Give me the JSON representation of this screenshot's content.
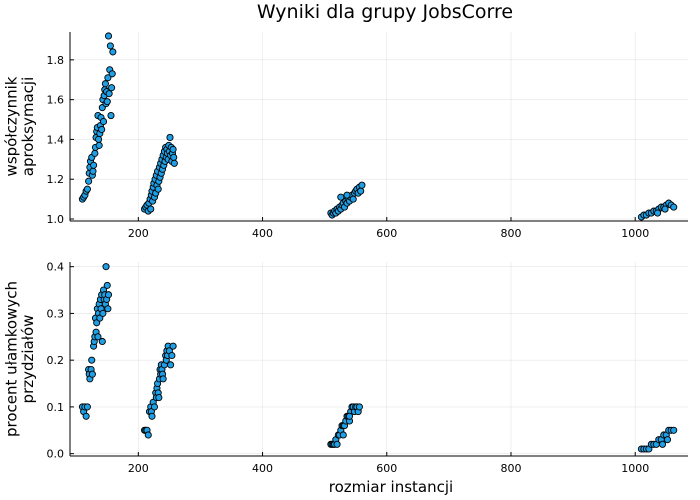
{
  "title": "Wyniki dla grupy JobsCorre",
  "colors": {
    "marker": "#1f9fe5",
    "marker_edge": "#000000"
  },
  "chart_data": [
    {
      "type": "scatter",
      "name": "top",
      "ylabel": [
        "współczynnik",
        "aproksymacji"
      ],
      "xlabel": "",
      "xlim": [
        90,
        1085
      ],
      "ylim": [
        0.99,
        1.94
      ],
      "xticks": [
        200,
        400,
        600,
        800,
        1000
      ],
      "xtick_labels": [
        "200",
        "400",
        "600",
        "800",
        "1000"
      ],
      "yticks": [
        1.0,
        1.2,
        1.4,
        1.6,
        1.8
      ],
      "ytick_labels": [
        "1.0",
        "1.2",
        "1.4",
        "1.6",
        "1.8"
      ],
      "grid": true,
      "legend": "none",
      "points": [
        [
          110,
          1.1
        ],
        [
          112,
          1.11
        ],
        [
          114,
          1.12
        ],
        [
          116,
          1.14
        ],
        [
          118,
          1.15
        ],
        [
          120,
          1.19
        ],
        [
          121,
          1.23
        ],
        [
          122,
          1.26
        ],
        [
          123,
          1.29
        ],
        [
          125,
          1.31
        ],
        [
          126,
          1.22
        ],
        [
          127,
          1.24
        ],
        [
          128,
          1.27
        ],
        [
          130,
          1.33
        ],
        [
          131,
          1.36
        ],
        [
          132,
          1.41
        ],
        [
          133,
          1.44
        ],
        [
          134,
          1.46
        ],
        [
          135,
          1.52
        ],
        [
          136,
          1.4
        ],
        [
          137,
          1.37
        ],
        [
          138,
          1.43
        ],
        [
          139,
          1.47
        ],
        [
          140,
          1.51
        ],
        [
          141,
          1.45
        ],
        [
          142,
          1.56
        ],
        [
          143,
          1.6
        ],
        [
          144,
          1.49
        ],
        [
          145,
          1.62
        ],
        [
          146,
          1.65
        ],
        [
          147,
          1.68
        ],
        [
          148,
          1.58
        ],
        [
          149,
          1.64
        ],
        [
          150,
          1.59
        ],
        [
          151,
          1.71
        ],
        [
          152,
          1.92
        ],
        [
          153,
          1.63
        ],
        [
          154,
          1.75
        ],
        [
          155,
          1.87
        ],
        [
          156,
          1.52
        ],
        [
          157,
          1.66
        ],
        [
          158,
          1.73
        ],
        [
          159,
          1.84
        ],
        [
          210,
          1.05
        ],
        [
          212,
          1.06
        ],
        [
          214,
          1.07
        ],
        [
          216,
          1.04
        ],
        [
          217,
          1.08
        ],
        [
          219,
          1.1
        ],
        [
          220,
          1.05
        ],
        [
          221,
          1.12
        ],
        [
          222,
          1.14
        ],
        [
          223,
          1.09
        ],
        [
          224,
          1.16
        ],
        [
          225,
          1.18
        ],
        [
          226,
          1.11
        ],
        [
          227,
          1.2
        ],
        [
          228,
          1.13
        ],
        [
          229,
          1.22
        ],
        [
          230,
          1.17
        ],
        [
          231,
          1.24
        ],
        [
          232,
          1.15
        ],
        [
          233,
          1.19
        ],
        [
          234,
          1.26
        ],
        [
          235,
          1.21
        ],
        [
          236,
          1.28
        ],
        [
          237,
          1.23
        ],
        [
          238,
          1.3
        ],
        [
          239,
          1.25
        ],
        [
          240,
          1.32
        ],
        [
          241,
          1.27
        ],
        [
          242,
          1.34
        ],
        [
          243,
          1.29
        ],
        [
          244,
          1.36
        ],
        [
          245,
          1.31
        ],
        [
          246,
          1.35
        ],
        [
          247,
          1.33
        ],
        [
          248,
          1.3
        ],
        [
          249,
          1.37
        ],
        [
          250,
          1.34
        ],
        [
          251,
          1.41
        ],
        [
          252,
          1.32
        ],
        [
          253,
          1.36
        ],
        [
          254,
          1.29
        ],
        [
          255,
          1.33
        ],
        [
          256,
          1.35
        ],
        [
          257,
          1.31
        ],
        [
          258,
          1.28
        ],
        [
          510,
          1.03
        ],
        [
          512,
          1.02
        ],
        [
          514,
          1.03
        ],
        [
          516,
          1.04
        ],
        [
          518,
          1.03
        ],
        [
          520,
          1.05
        ],
        [
          522,
          1.04
        ],
        [
          524,
          1.06
        ],
        [
          526,
          1.05
        ],
        [
          528,
          1.07
        ],
        [
          530,
          1.08
        ],
        [
          532,
          1.06
        ],
        [
          534,
          1.09
        ],
        [
          536,
          1.08
        ],
        [
          538,
          1.1
        ],
        [
          540,
          1.09
        ],
        [
          542,
          1.11
        ],
        [
          544,
          1.12
        ],
        [
          546,
          1.1
        ],
        [
          548,
          1.13
        ],
        [
          550,
          1.14
        ],
        [
          552,
          1.15
        ],
        [
          554,
          1.13
        ],
        [
          556,
          1.16
        ],
        [
          558,
          1.14
        ],
        [
          560,
          1.17
        ],
        [
          526,
          1.11
        ],
        [
          536,
          1.12
        ],
        [
          1010,
          1.01
        ],
        [
          1014,
          1.02
        ],
        [
          1018,
          1.02
        ],
        [
          1022,
          1.03
        ],
        [
          1026,
          1.03
        ],
        [
          1030,
          1.04
        ],
        [
          1034,
          1.04
        ],
        [
          1038,
          1.05
        ],
        [
          1042,
          1.06
        ],
        [
          1046,
          1.06
        ],
        [
          1050,
          1.07
        ],
        [
          1054,
          1.08
        ],
        [
          1058,
          1.07
        ],
        [
          1062,
          1.06
        ],
        [
          1048,
          1.05
        ],
        [
          1036,
          1.03
        ]
      ]
    },
    {
      "type": "scatter",
      "name": "bottom",
      "ylabel": [
        "procent ułamkowych",
        "przydziałów"
      ],
      "xlabel": "rozmiar instancji",
      "xlim": [
        90,
        1085
      ],
      "ylim": [
        -0.005,
        0.41
      ],
      "xticks": [
        200,
        400,
        600,
        800,
        1000
      ],
      "xtick_labels": [
        "200",
        "400",
        "600",
        "800",
        "1000"
      ],
      "yticks": [
        0.0,
        0.1,
        0.2,
        0.3,
        0.4
      ],
      "ytick_labels": [
        "0.0",
        "0.1",
        "0.2",
        "0.3",
        "0.4"
      ],
      "grid": true,
      "legend": "none",
      "points": [
        [
          110,
          0.1
        ],
        [
          112,
          0.09
        ],
        [
          114,
          0.1
        ],
        [
          116,
          0.08
        ],
        [
          118,
          0.1
        ],
        [
          120,
          0.18
        ],
        [
          121,
          0.17
        ],
        [
          122,
          0.16
        ],
        [
          124,
          0.18
        ],
        [
          125,
          0.2
        ],
        [
          126,
          0.17
        ],
        [
          128,
          0.23
        ],
        [
          129,
          0.24
        ],
        [
          130,
          0.25
        ],
        [
          131,
          0.29
        ],
        [
          132,
          0.26
        ],
        [
          133,
          0.28
        ],
        [
          134,
          0.31
        ],
        [
          135,
          0.25
        ],
        [
          136,
          0.3
        ],
        [
          137,
          0.32
        ],
        [
          138,
          0.29
        ],
        [
          139,
          0.33
        ],
        [
          140,
          0.31
        ],
        [
          141,
          0.34
        ],
        [
          142,
          0.24
        ],
        [
          143,
          0.3
        ],
        [
          144,
          0.35
        ],
        [
          145,
          0.33
        ],
        [
          146,
          0.34
        ],
        [
          147,
          0.32
        ],
        [
          148,
          0.4
        ],
        [
          149,
          0.33
        ],
        [
          150,
          0.36
        ],
        [
          151,
          0.31
        ],
        [
          152,
          0.34
        ],
        [
          210,
          0.05
        ],
        [
          212,
          0.05
        ],
        [
          214,
          0.05
        ],
        [
          216,
          0.04
        ],
        [
          218,
          0.09
        ],
        [
          220,
          0.1
        ],
        [
          221,
          0.09
        ],
        [
          222,
          0.08
        ],
        [
          224,
          0.11
        ],
        [
          226,
          0.1
        ],
        [
          228,
          0.13
        ],
        [
          229,
          0.12
        ],
        [
          230,
          0.14
        ],
        [
          231,
          0.15
        ],
        [
          232,
          0.13
        ],
        [
          233,
          0.12
        ],
        [
          234,
          0.16
        ],
        [
          235,
          0.18
        ],
        [
          236,
          0.17
        ],
        [
          237,
          0.19
        ],
        [
          238,
          0.18
        ],
        [
          239,
          0.17
        ],
        [
          240,
          0.16
        ],
        [
          242,
          0.19
        ],
        [
          244,
          0.21
        ],
        [
          245,
          0.2
        ],
        [
          246,
          0.22
        ],
        [
          247,
          0.21
        ],
        [
          248,
          0.23
        ],
        [
          250,
          0.22
        ],
        [
          252,
          0.19
        ],
        [
          254,
          0.21
        ],
        [
          256,
          0.23
        ],
        [
          510,
          0.02
        ],
        [
          512,
          0.02
        ],
        [
          514,
          0.02
        ],
        [
          516,
          0.02
        ],
        [
          518,
          0.03
        ],
        [
          520,
          0.02
        ],
        [
          522,
          0.04
        ],
        [
          524,
          0.04
        ],
        [
          526,
          0.05
        ],
        [
          528,
          0.06
        ],
        [
          530,
          0.06
        ],
        [
          532,
          0.06
        ],
        [
          534,
          0.07
        ],
        [
          536,
          0.08
        ],
        [
          538,
          0.08
        ],
        [
          540,
          0.07
        ],
        [
          542,
          0.09
        ],
        [
          544,
          0.1
        ],
        [
          546,
          0.1
        ],
        [
          548,
          0.09
        ],
        [
          550,
          0.1
        ],
        [
          552,
          0.1
        ],
        [
          554,
          0.09
        ],
        [
          556,
          0.1
        ],
        [
          530,
          0.04
        ],
        [
          540,
          0.08
        ],
        [
          1010,
          0.01
        ],
        [
          1014,
          0.01
        ],
        [
          1018,
          0.01
        ],
        [
          1022,
          0.01
        ],
        [
          1026,
          0.02
        ],
        [
          1030,
          0.02
        ],
        [
          1034,
          0.02
        ],
        [
          1038,
          0.03
        ],
        [
          1042,
          0.03
        ],
        [
          1046,
          0.04
        ],
        [
          1050,
          0.04
        ],
        [
          1054,
          0.05
        ],
        [
          1058,
          0.05
        ],
        [
          1062,
          0.05
        ],
        [
          1044,
          0.02
        ],
        [
          1052,
          0.03
        ]
      ]
    }
  ]
}
